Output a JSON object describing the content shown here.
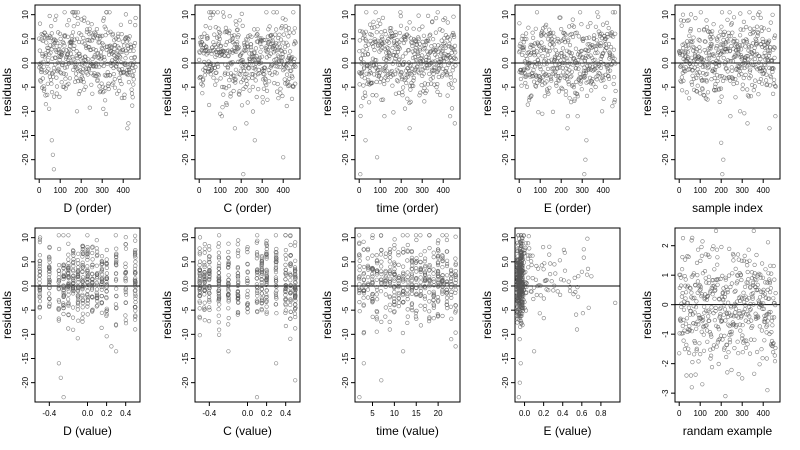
{
  "chart_data": [
    {
      "type": "scatter",
      "xlabel": "D (order)",
      "ylabel": "residuals",
      "xlim": [
        -20,
        480
      ],
      "ylim": [
        -24,
        12
      ],
      "xticks": [
        "0",
        "100",
        "200",
        "300",
        "400"
      ],
      "xtick_values": [
        0,
        100,
        200,
        300,
        400
      ],
      "yticks": [
        "-20",
        "-15",
        "-10",
        "-5",
        "0.0",
        "5.0",
        "10"
      ],
      "ytick_values": [
        -20,
        -15,
        -10,
        -5,
        0,
        5,
        10
      ],
      "hline": 0,
      "x_kind": "index",
      "n": 460,
      "points": [
        [
          60,
          -16
        ],
        [
          65,
          -19
        ],
        [
          70,
          -22
        ],
        [
          420,
          -13.5
        ],
        [
          425,
          -12.5
        ],
        [
          180,
          -10
        ],
        [
          305,
          -9.5
        ]
      ]
    },
    {
      "type": "scatter",
      "xlabel": "C (order)",
      "ylabel": "residuals",
      "xlim": [
        -20,
        480
      ],
      "ylim": [
        -24,
        12
      ],
      "xticks": [
        "0",
        "100",
        "200",
        "300",
        "400"
      ],
      "xtick_values": [
        0,
        100,
        200,
        300,
        400
      ],
      "yticks": [
        "-20",
        "-15",
        "-10",
        "-5",
        "0.0",
        "5.0",
        "10"
      ],
      "ytick_values": [
        -20,
        -15,
        -10,
        -5,
        0,
        5,
        10
      ],
      "hline": 0,
      "x_kind": "index",
      "n": 460,
      "points": [
        [
          210,
          -23
        ],
        [
          265,
          -16
        ],
        [
          400,
          -19.5
        ],
        [
          170,
          -13.5
        ],
        [
          225,
          -12.5
        ],
        [
          100,
          -10.5
        ]
      ]
    },
    {
      "type": "scatter",
      "xlabel": "time (order)",
      "ylabel": "residuals",
      "xlim": [
        -20,
        480
      ],
      "ylim": [
        -24,
        12
      ],
      "xticks": [
        "0",
        "100",
        "200",
        "300",
        "400"
      ],
      "xtick_values": [
        0,
        100,
        200,
        300,
        400
      ],
      "yticks": [
        "-20",
        "-15",
        "-10",
        "-5",
        "0.0",
        "5.0",
        "10"
      ],
      "ytick_values": [
        -20,
        -15,
        -10,
        -5,
        0,
        5,
        10
      ],
      "hline": 0,
      "x_kind": "index",
      "n": 460,
      "points": [
        [
          5,
          -23
        ],
        [
          85,
          -19.5
        ],
        [
          30,
          -16
        ],
        [
          240,
          -13.5
        ],
        [
          455,
          -12.5
        ],
        [
          120,
          -11
        ]
      ]
    },
    {
      "type": "scatter",
      "xlabel": "E (order)",
      "ylabel": "residuals",
      "xlim": [
        -20,
        480
      ],
      "ylim": [
        -24,
        12
      ],
      "xticks": [
        "0",
        "100",
        "200",
        "300",
        "400"
      ],
      "xtick_values": [
        0,
        100,
        200,
        300,
        400
      ],
      "yticks": [
        "-20",
        "-15",
        "-10",
        "-5",
        "0.0",
        "5.0",
        "10"
      ],
      "ytick_values": [
        -20,
        -15,
        -10,
        -5,
        0,
        5,
        10
      ],
      "hline": 0,
      "x_kind": "index",
      "n": 460,
      "points": [
        [
          310,
          -23
        ],
        [
          315,
          -20
        ],
        [
          320,
          -16
        ],
        [
          230,
          -13.5
        ],
        [
          110,
          -10.5
        ],
        [
          395,
          -10
        ]
      ]
    },
    {
      "type": "scatter",
      "xlabel": "sample index",
      "ylabel": "residuals",
      "xlim": [
        -20,
        480
      ],
      "ylim": [
        -24,
        12
      ],
      "xticks": [
        "0",
        "100",
        "200",
        "300",
        "400"
      ],
      "xtick_values": [
        0,
        100,
        200,
        300,
        400
      ],
      "yticks": [
        "-20",
        "-15",
        "-10",
        "-5",
        "0.0",
        "5.0",
        "10"
      ],
      "ytick_values": [
        -20,
        -15,
        -10,
        -5,
        0,
        5,
        10
      ],
      "hline": 0,
      "x_kind": "index",
      "n": 460,
      "points": [
        [
          205,
          -23
        ],
        [
          210,
          -20
        ],
        [
          200,
          -16.5
        ],
        [
          430,
          -13.5
        ],
        [
          325,
          -12.5
        ],
        [
          290,
          -10
        ]
      ]
    },
    {
      "type": "scatter",
      "xlabel": "D (value)",
      "ylabel": "residuals",
      "xlim": [
        -0.55,
        0.55
      ],
      "ylim": [
        -24,
        12
      ],
      "xticks": [
        "-0.4",
        "0.0",
        "0.2",
        "0.4"
      ],
      "xtick_values": [
        -0.4,
        0.0,
        0.2,
        0.4
      ],
      "yticks": [
        "-20",
        "-15",
        "-10",
        "-5",
        "0.0",
        "5.0",
        "10"
      ],
      "ytick_values": [
        -20,
        -15,
        -10,
        -5,
        0,
        5,
        10
      ],
      "hline": 0,
      "x_kind": "columns",
      "n": 460,
      "columns": [
        -0.5,
        -0.4,
        -0.3,
        -0.25,
        -0.2,
        -0.15,
        -0.1,
        -0.05,
        0.0,
        0.05,
        0.1,
        0.15,
        0.2,
        0.3,
        0.4,
        0.5
      ],
      "points": [
        [
          -0.3,
          -16
        ],
        [
          -0.28,
          -19
        ],
        [
          -0.25,
          -23
        ],
        [
          0.3,
          -13.5
        ],
        [
          0.25,
          -12.5
        ]
      ]
    },
    {
      "type": "scatter",
      "xlabel": "C (value)",
      "ylabel": "residuals",
      "xlim": [
        -0.55,
        0.55
      ],
      "ylim": [
        -24,
        12
      ],
      "xticks": [
        "-0.4",
        "0.0",
        "0.2",
        "0.4"
      ],
      "xtick_values": [
        -0.4,
        0.0,
        0.2,
        0.4
      ],
      "yticks": [
        "-20",
        "-15",
        "-10",
        "-5",
        "0.0",
        "5.0",
        "10"
      ],
      "ytick_values": [
        -20,
        -15,
        -10,
        -5,
        0,
        5,
        10
      ],
      "hline": 0,
      "x_kind": "columns",
      "n": 460,
      "columns": [
        -0.5,
        -0.45,
        -0.4,
        -0.3,
        -0.2,
        -0.1,
        0.0,
        0.1,
        0.15,
        0.2,
        0.3,
        0.4,
        0.45,
        0.5
      ],
      "points": [
        [
          0.1,
          -23
        ],
        [
          0.5,
          -19.5
        ],
        [
          0.3,
          -16
        ],
        [
          -0.2,
          -13.5
        ]
      ]
    },
    {
      "type": "scatter",
      "xlabel": "time (value)",
      "ylabel": "residuals",
      "xlim": [
        1,
        25
      ],
      "ylim": [
        -24,
        12
      ],
      "xticks": [
        "5",
        "10",
        "15",
        "20"
      ],
      "xtick_values": [
        5,
        10,
        15,
        20
      ],
      "yticks": [
        "-20",
        "-15",
        "-10",
        "-5",
        "0.0",
        "5.0",
        "10"
      ],
      "ytick_values": [
        -20,
        -15,
        -10,
        -5,
        0,
        5,
        10
      ],
      "hline": 0,
      "x_kind": "columns",
      "n": 460,
      "columns": [
        2,
        3,
        4,
        5,
        6,
        7,
        8,
        9,
        10,
        11,
        12,
        13,
        14,
        15,
        16,
        17,
        18,
        19,
        20,
        21,
        22,
        23,
        24
      ],
      "points": [
        [
          2,
          -23
        ],
        [
          7,
          -19.5
        ],
        [
          3,
          -16
        ],
        [
          12,
          -13.5
        ],
        [
          24,
          -12.5
        ]
      ]
    },
    {
      "type": "scatter",
      "xlabel": "E (value)",
      "ylabel": "residuals",
      "xlim": [
        -0.1,
        1.0
      ],
      "ylim": [
        -24,
        12
      ],
      "xticks": [
        "0.0",
        "0.2",
        "0.4",
        "0.6",
        "0.8"
      ],
      "xtick_values": [
        0.0,
        0.2,
        0.4,
        0.6,
        0.8
      ],
      "yticks": [
        "-20",
        "-15",
        "-10",
        "-5",
        "0.0",
        "5.0",
        "10"
      ],
      "ytick_values": [
        -20,
        -15,
        -10,
        -5,
        0,
        5,
        10
      ],
      "hline": 0,
      "x_kind": "skewed",
      "n": 460,
      "points": [
        [
          -0.06,
          -23
        ],
        [
          -0.05,
          -20
        ],
        [
          -0.04,
          -16
        ],
        [
          0.1,
          -13.5
        ],
        [
          0.95,
          -3.5
        ],
        [
          0.55,
          -9
        ],
        [
          0.7,
          2
        ]
      ]
    },
    {
      "type": "scatter",
      "xlabel": "randam example",
      "ylabel": "residuals",
      "xlim": [
        -20,
        480
      ],
      "ylim": [
        -3.3,
        2.6
      ],
      "xticks": [
        "0",
        "100",
        "200",
        "300",
        "400"
      ],
      "xtick_values": [
        0,
        100,
        200,
        300,
        400
      ],
      "yticks": [
        "-3",
        "-2",
        "-1",
        "0",
        "1",
        "2"
      ],
      "ytick_values": [
        -3,
        -2,
        -1,
        0,
        1,
        2
      ],
      "hline": 0,
      "x_kind": "uniform",
      "n": 460,
      "points": [
        [
          60,
          -2.8
        ],
        [
          110,
          -2.7
        ],
        [
          220,
          -3.1
        ],
        [
          300,
          -2.5
        ],
        [
          420,
          -2.9
        ]
      ]
    }
  ]
}
